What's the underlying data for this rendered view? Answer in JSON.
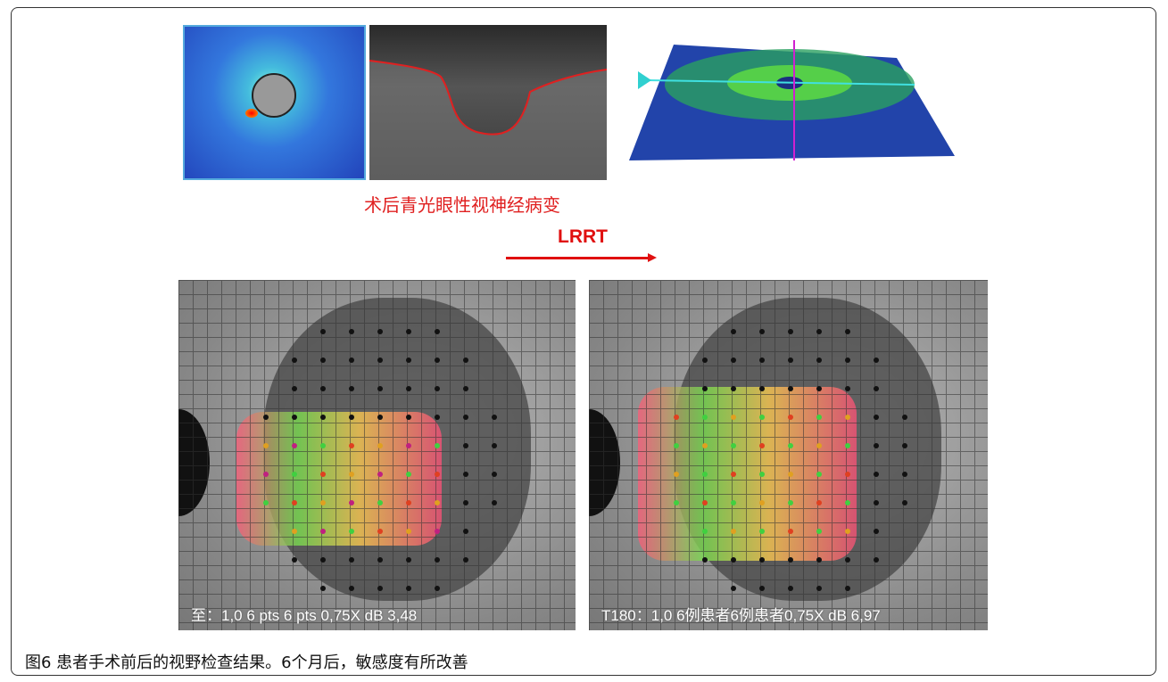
{
  "figure": {
    "top_title": "术后青光眼性视神经病变",
    "arrow_label": "LRRT",
    "left_panel_label": "至：1,0 6 pts 6 pts 0,75X dB 3,48",
    "right_panel_label": "T180：1,0 6例患者6例患者0,75X dB 6,97",
    "caption": "图6 患者手术前后的视野检查结果。6个月后，敏感度有所改善",
    "colors": {
      "accent_red": "#e01010",
      "heatmap_blue": "#2a4fc8",
      "sensitivity_green": "#40d040"
    }
  }
}
